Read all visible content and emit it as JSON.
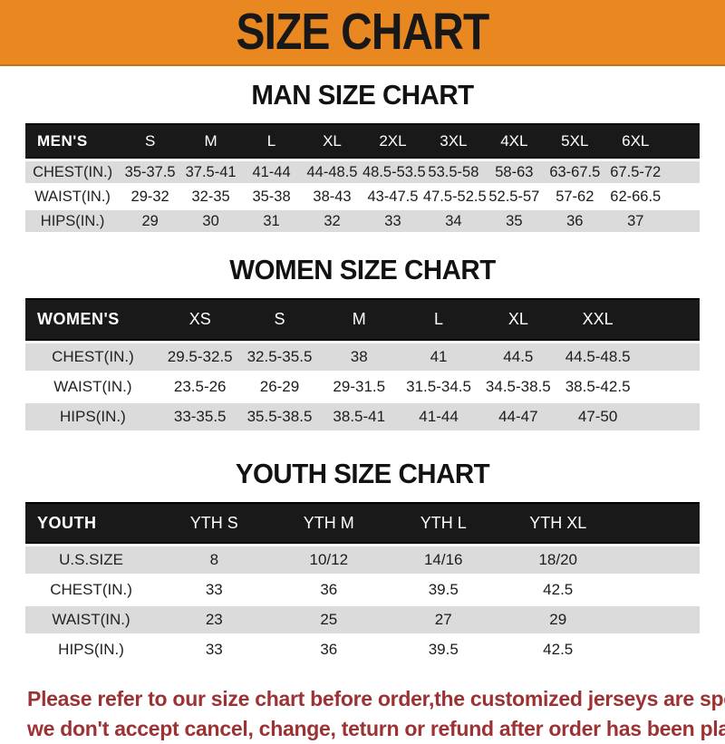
{
  "banner": {
    "title": "SIZE CHART"
  },
  "sections": [
    {
      "id": "men",
      "title": "MAN SIZE CHART",
      "header_label": "MEN'S",
      "columns": [
        "S",
        "M",
        "L",
        "XL",
        "2XL",
        "3XL",
        "4XL",
        "5XL",
        "6XL"
      ],
      "rows": [
        {
          "label": "CHEST(IN.)",
          "values": [
            "35-37.5",
            "37.5-41",
            "41-44",
            "44-48.5",
            "48.5-53.5",
            "53.5-58",
            "58-63",
            "63-67.5",
            "67.5-72"
          ]
        },
        {
          "label": "WAIST(IN.)",
          "values": [
            "29-32",
            "32-35",
            "35-38",
            "38-43",
            "43-47.5",
            "47.5-52.5",
            "52.5-57",
            "57-62",
            "62-66.5"
          ]
        },
        {
          "label": "HIPS(IN.)",
          "values": [
            "29",
            "30",
            "31",
            "32",
            "33",
            "34",
            "35",
            "36",
            "37"
          ]
        }
      ]
    },
    {
      "id": "women",
      "title": "WOMEN SIZE CHART",
      "header_label": "WOMEN'S",
      "columns": [
        "XS",
        "S",
        "M",
        "L",
        "XL",
        "XXL"
      ],
      "rows": [
        {
          "label": "CHEST(IN.)",
          "values": [
            "29.5-32.5",
            "32.5-35.5",
            "38",
            "41",
            "44.5",
            "44.5-48.5"
          ]
        },
        {
          "label": "WAIST(IN.)",
          "values": [
            "23.5-26",
            "26-29",
            "29-31.5",
            "31.5-34.5",
            "34.5-38.5",
            "38.5-42.5"
          ]
        },
        {
          "label": "HIPS(IN.)",
          "values": [
            "33-35.5",
            "35.5-38.5",
            "38.5-41",
            "41-44",
            "44-47",
            "47-50"
          ]
        }
      ]
    },
    {
      "id": "youth",
      "title": "YOUTH SIZE CHART",
      "header_label": "YOUTH",
      "columns": [
        "YTH S",
        "YTH M",
        "YTH L",
        "YTH XL"
      ],
      "rows": [
        {
          "label": "U.S.SIZE",
          "values": [
            "8",
            "10/12",
            "14/16",
            "18/20"
          ]
        },
        {
          "label": "CHEST(IN.)",
          "values": [
            "33",
            "36",
            "39.5",
            "42.5"
          ]
        },
        {
          "label": "WAIST(IN.)",
          "values": [
            "23",
            "25",
            "27",
            "29"
          ]
        },
        {
          "label": "HIPS(IN.)",
          "values": [
            "33",
            "36",
            "39.5",
            "42.5"
          ]
        }
      ]
    }
  ],
  "footer": {
    "line1": "Please refer to our size chart before order,the customized jerseys are special products,",
    "line2": "we don't accept cancel, change, teturn or refund after order has been placed!"
  },
  "colors": {
    "banner_bg": "#E98820",
    "header_bar_bg": "#191919",
    "row_alt_bg": "#DBDBDB",
    "notice_text": "#9C3234"
  }
}
